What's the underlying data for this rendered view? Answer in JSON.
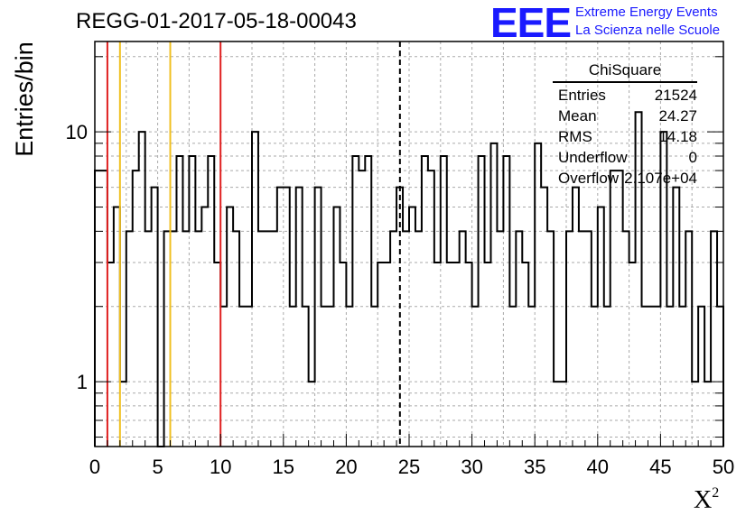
{
  "chart_data": {
    "type": "bar",
    "title": "REGG-01-2017-05-18-00043",
    "xlabel": "Χ",
    "xlabel_sup": "2",
    "ylabel": "Entries/bin",
    "xlim": [
      0,
      50
    ],
    "ylim": [
      0.55,
      23
    ],
    "yscale": "log",
    "grid": true,
    "bin_width": 0.5,
    "x_ticks": [
      "0",
      "5",
      "10",
      "15",
      "20",
      "25",
      "30",
      "35",
      "40",
      "45",
      "50"
    ],
    "y_ticks": [
      "1",
      "10"
    ],
    "values": [
      7,
      7,
      3,
      5,
      1,
      4,
      7,
      10,
      4,
      6,
      0,
      4,
      4,
      8,
      4,
      8,
      4,
      5,
      8,
      3,
      2,
      5,
      4,
      2,
      2,
      10,
      4,
      4,
      4,
      6,
      6,
      2,
      6,
      2,
      1,
      6,
      2,
      2,
      5,
      3,
      2,
      8,
      7,
      8,
      2,
      3,
      3,
      4,
      6,
      4,
      5,
      4,
      8,
      7,
      3,
      8,
      3,
      3,
      4,
      3,
      2,
      8,
      3,
      9,
      4,
      8,
      2,
      4,
      3,
      2,
      9,
      6,
      4,
      1,
      1,
      4,
      6,
      4,
      4,
      2,
      5,
      2,
      7,
      7,
      4,
      3,
      12,
      2,
      2,
      2,
      10,
      2,
      6,
      2,
      4,
      1,
      2,
      1,
      4,
      2
    ],
    "vertical_lines": [
      {
        "x": 1,
        "color": "#e02020",
        "style": "solid"
      },
      {
        "x": 2,
        "color": "#f0c020",
        "style": "solid"
      },
      {
        "x": 6,
        "color": "#f0c020",
        "style": "solid"
      },
      {
        "x": 10,
        "color": "#e02020",
        "style": "solid"
      },
      {
        "x": 24.27,
        "color": "#000000",
        "style": "dashed"
      }
    ],
    "legend": {
      "title": "ChiSquare",
      "placement": "top-right",
      "rows": [
        {
          "label": "Entries",
          "value": "21524"
        },
        {
          "label": "Mean",
          "value": "24.27"
        },
        {
          "label": "RMS",
          "value": "14.18"
        },
        {
          "label": "Underflow",
          "value": "0"
        },
        {
          "label": "Overflow",
          "value": "2.107e+04"
        }
      ]
    }
  },
  "logo": {
    "text": "EEE",
    "line1": "Extreme Energy Events",
    "line2": "La Scienza nelle Scuole",
    "color": "#1a1aff"
  }
}
